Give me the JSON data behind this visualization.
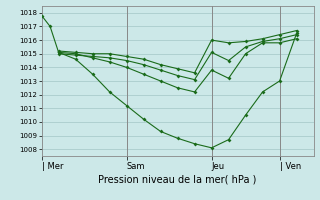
{
  "title": "Pression niveau de la mer( hPa )",
  "bg_color": "#cce8e8",
  "grid_color": "#aacccc",
  "line_color": "#1a6b1a",
  "vline_color": "#888888",
  "ylim": [
    1007.5,
    1018.5
  ],
  "yticks": [
    1008,
    1009,
    1010,
    1011,
    1012,
    1013,
    1014,
    1015,
    1016,
    1017,
    1018
  ],
  "xlim": [
    0,
    8.0
  ],
  "day_labels": [
    "| Mer",
    "Sam",
    "Jeu",
    "| Ven"
  ],
  "day_positions": [
    0.0,
    2.5,
    5.0,
    7.0
  ],
  "vline_positions": [
    2.5,
    5.0,
    7.0
  ],
  "series": [
    {
      "x": [
        0.0,
        0.25,
        0.5,
        1.0,
        1.5,
        2.0,
        2.5,
        3.0,
        3.5,
        4.0,
        4.5,
        5.0,
        5.5,
        6.0,
        6.5,
        7.0,
        7.5
      ],
      "y": [
        1017.8,
        1017.0,
        1015.1,
        1014.6,
        1013.5,
        1012.2,
        1011.2,
        1010.2,
        1009.3,
        1008.8,
        1008.4,
        1008.1,
        1008.7,
        1010.5,
        1012.2,
        1013.0,
        1016.5
      ]
    },
    {
      "x": [
        0.5,
        1.0,
        1.5,
        2.0,
        2.5,
        3.0,
        3.5,
        4.0,
        4.5,
        5.0,
        5.5,
        6.0,
        6.5,
        7.0,
        7.5
      ],
      "y": [
        1015.1,
        1015.0,
        1014.7,
        1014.4,
        1014.0,
        1013.5,
        1013.0,
        1012.5,
        1012.2,
        1013.8,
        1013.2,
        1015.0,
        1015.8,
        1015.8,
        1016.1
      ]
    },
    {
      "x": [
        0.5,
        1.0,
        1.5,
        2.0,
        2.5,
        3.0,
        3.5,
        4.0,
        4.5,
        5.0,
        5.5,
        6.0,
        6.5,
        7.0,
        7.5
      ],
      "y": [
        1015.0,
        1014.9,
        1014.8,
        1014.7,
        1014.5,
        1014.2,
        1013.8,
        1013.4,
        1013.1,
        1015.1,
        1014.5,
        1015.5,
        1015.9,
        1016.1,
        1016.4
      ]
    },
    {
      "x": [
        0.5,
        1.0,
        1.5,
        2.0,
        2.5,
        3.0,
        3.5,
        4.0,
        4.5,
        5.0,
        5.5,
        6.0,
        6.5,
        7.0,
        7.5
      ],
      "y": [
        1015.2,
        1015.1,
        1015.0,
        1015.0,
        1014.8,
        1014.6,
        1014.2,
        1013.9,
        1013.6,
        1016.0,
        1015.8,
        1015.9,
        1016.1,
        1016.4,
        1016.7
      ]
    }
  ]
}
